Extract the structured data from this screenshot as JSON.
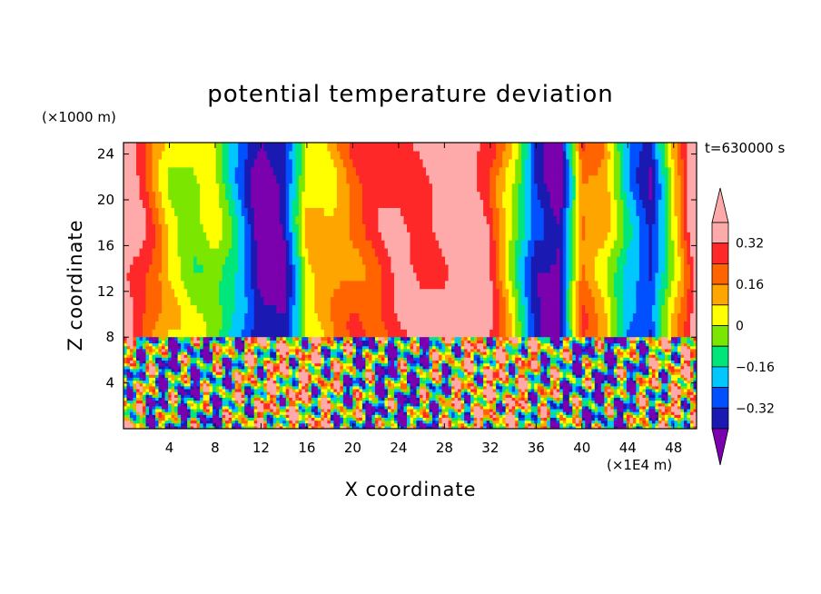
{
  "chart_data": {
    "type": "heatmap",
    "title": "potential temperature deviation",
    "time_label": "t=630000 s",
    "xlabel": "X coordinate",
    "ylabel": "Z coordinate",
    "x_unit": "(×1E4 m)",
    "y_unit": "(×1000 m)",
    "xlim": [
      0,
      50
    ],
    "ylim": [
      0,
      25
    ],
    "x_ticks": [
      "4",
      "8",
      "12",
      "16",
      "20",
      "24",
      "28",
      "32",
      "36",
      "40",
      "44",
      "48"
    ],
    "y_ticks": [
      "4",
      "8",
      "12",
      "16",
      "20",
      "24"
    ],
    "colorbar": {
      "levels": [
        -0.4,
        -0.32,
        -0.24,
        -0.16,
        -0.08,
        0,
        0.08,
        0.16,
        0.24,
        0.32,
        0.4
      ],
      "labels": [
        "0.32",
        "0.16",
        "0",
        "−0.16",
        "−0.32"
      ],
      "label_values": [
        0.32,
        0.16,
        0,
        -0.16,
        -0.32
      ],
      "colors": [
        "#7b00ae",
        "#1a1ab3",
        "#0050ff",
        "#00c8ff",
        "#00e67a",
        "#7be600",
        "#ffff00",
        "#ffa500",
        "#ff6400",
        "#ff2828",
        "#ffaaaa"
      ],
      "extend": "both"
    },
    "upper_layer_columns": {
      "x": [
        0,
        2,
        4,
        6,
        8,
        10,
        12,
        14,
        16,
        18,
        20,
        22,
        24,
        26,
        28,
        30,
        32,
        34,
        36,
        38,
        40,
        42,
        44,
        46,
        48,
        50
      ],
      "value": [
        0.42,
        0.25,
        0.05,
        -0.02,
        0.0,
        -0.2,
        -0.45,
        -0.4,
        0.05,
        0.1,
        0.2,
        0.25,
        0.32,
        0.3,
        0.38,
        0.42,
        0.3,
        0.0,
        -0.35,
        -0.45,
        0.2,
        0.1,
        -0.2,
        -0.35,
        0.05,
        0.42
      ]
    },
    "interface_height": 8
  }
}
